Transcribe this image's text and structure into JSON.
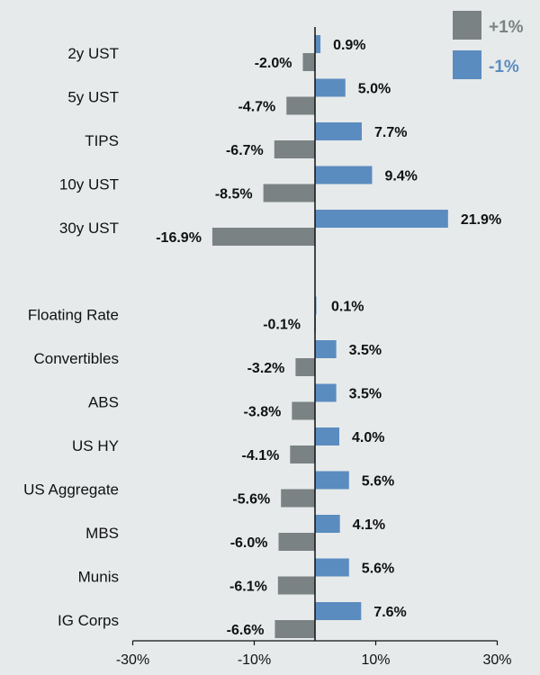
{
  "chart_data": {
    "type": "bar",
    "orientation": "horizontal",
    "categories": [
      "2y UST",
      "5y UST",
      "TIPS",
      "10y UST",
      "30y UST",
      "Floating Rate",
      "Convertibles",
      "ABS",
      "US HY",
      "US Aggregate",
      "MBS",
      "Munis",
      "IG Corps"
    ],
    "series": [
      {
        "name": "+1%",
        "color": "#7b8283",
        "values": [
          -2.0,
          -4.7,
          -6.7,
          -8.5,
          -16.9,
          -0.1,
          -3.2,
          -3.8,
          -4.1,
          -5.6,
          -6.0,
          -6.1,
          -6.6
        ],
        "labels": [
          "-2.0%",
          "-4.7%",
          "-6.7%",
          "-8.5%",
          "-16.9%",
          "-0.1%",
          "-3.2%",
          "-3.8%",
          "-4.1%",
          "-5.6%",
          "-6.0%",
          "-6.1%",
          "-6.6%"
        ]
      },
      {
        "name": "-1%",
        "color": "#5b8cc0",
        "values": [
          0.9,
          5.0,
          7.7,
          9.4,
          21.9,
          0.1,
          3.5,
          3.5,
          4.0,
          5.6,
          4.1,
          5.6,
          7.6
        ],
        "labels": [
          "0.9%",
          "5.0%",
          "7.7%",
          "9.4%",
          "21.9%",
          "0.1%",
          "3.5%",
          "3.5%",
          "4.0%",
          "5.6%",
          "4.1%",
          "5.6%",
          "7.6%"
        ]
      }
    ],
    "xlim": [
      -30,
      30
    ],
    "xticks": [
      -30,
      -10,
      10,
      30
    ],
    "xtick_labels": [
      "-30%",
      "-10%",
      "10%",
      "30%"
    ],
    "legend": {
      "position": "top-right"
    },
    "grid": false,
    "title": "",
    "xlabel": "",
    "ylabel": ""
  }
}
